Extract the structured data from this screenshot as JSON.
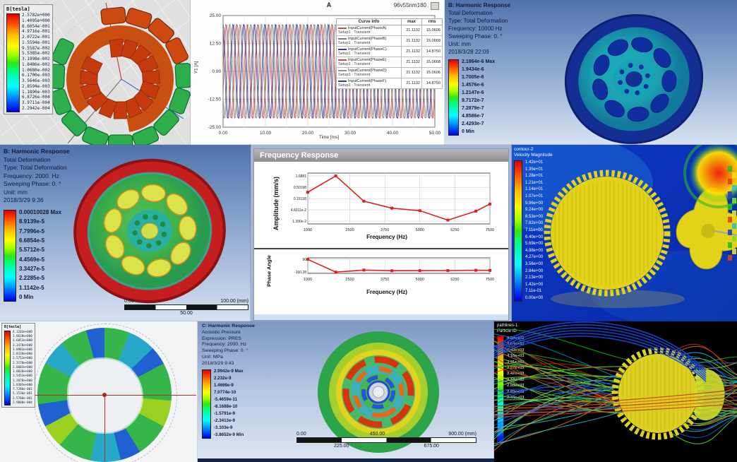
{
  "panels": {
    "flux_stator": {
      "legend_title": "B[tesla]",
      "legend_values": [
        "2.5782e+000",
        "1.4095e+000",
        "8.6054e-001",
        "4.9716e-001",
        "2.0722e-001",
        "1.5594e-001",
        "9.5587e-002",
        "5.5385e-002",
        "3.1998e-002",
        "1.8486e-002",
        "1.0680e-002",
        "6.1700e-003",
        "3.5646e-003",
        "2.8594e-003",
        "1.1890e-003",
        "6.8726e-004",
        "3.9711e-004",
        "2.2942e-004"
      ]
    },
    "phase_currents": {
      "model_label": "96v55nm180",
      "table": {
        "headers": [
          "Curve Info",
          "max",
          "rms"
        ],
        "rows": [
          {
            "name": "InputCurrent(PhaseA)",
            "setup": "Setup1 : Transient",
            "max": "21.1132",
            "rms": "15.0606",
            "swatch": "#c0504d"
          },
          {
            "name": "InputCurrent(PhaseB)",
            "setup": "Setup1 : Transient",
            "max": "21.1132",
            "rms": "15.0668",
            "swatch": "#8a7a6a"
          },
          {
            "name": "InputCurrent(PhaseC)",
            "setup": "Setup1 : Transient",
            "max": "21.1132",
            "rms": "14.8750",
            "swatch": "#3b3b8f"
          },
          {
            "name": "InputCurrent(PhaseE)",
            "setup": "Setup1 : Transient",
            "max": "21.1132",
            "rms": "15.0668",
            "swatch": "#c0504d"
          },
          {
            "name": "InputCurrent(PhaseD)",
            "setup": "Setup1 : Transient",
            "max": "21.1132",
            "rms": "15.0606",
            "swatch": "#8f8f8f"
          },
          {
            "name": "InputCurrent(PhaseF)",
            "setup": "Setup1 : Transient",
            "max": "21.1132",
            "rms": "14.8750",
            "swatch": "#3b3b8f"
          }
        ]
      }
    },
    "harmonic_10000": {
      "header_lines": [
        "B: Harmonic Response",
        "Total Deformation",
        "Type: Total Deformation",
        "Frequency: 10000 Hz",
        "Sweeping Phase: 0. °",
        "Unit: mm",
        "2018/3/28 22:09"
      ],
      "legend_values": [
        "2.1864e-6 Max",
        "1.9434e-6",
        "1.7005e-6",
        "1.4576e-6",
        "1.2147e-6",
        "9.7172e-7",
        "7.2879e-7",
        "4.8586e-7",
        "2.4293e-7",
        "0 Min"
      ]
    },
    "harmonic_2000": {
      "header_lines": [
        "B: Harmonic Response",
        "Total Deformation",
        "Type: Total Deformation",
        "Frequency: 2000. Hz",
        "Sweeping Phase: 0. °",
        "Unit: mm",
        "2018/3/29 9:36"
      ],
      "legend_values": [
        "0.00010028 Max",
        "8.9139e-5",
        "7.7996e-5",
        "6.6854e-5",
        "5.5712e-5",
        "4.4569e-5",
        "3.3427e-5",
        "2.2285e-5",
        "1.1142e-5",
        "0 Min"
      ],
      "ruler": {
        "start": "0.00",
        "mid": "50.00",
        "end": "100.00 (mm)"
      }
    },
    "freq_response": {
      "window_title": "Frequency Response"
    },
    "cfd_contour": {
      "legend_title_lines": [
        "contour-2",
        "Velocity Magnitude"
      ],
      "legend_values": [
        "1.42e+01",
        "1.35e+01",
        "1.28e+01",
        "1.21e+01",
        "1.14e+01",
        "1.07e+01",
        "9.96e+00",
        "9.24e+00",
        "8.53e+00",
        "7.82e+00",
        "7.11e+00",
        "6.40e+00",
        "5.69e+00",
        "4.98e+00",
        "4.27e+00",
        "3.56e+00",
        "2.84e+00",
        "2.13e+00",
        "1.42e+00",
        "7.11e-01",
        "0.00e+00"
      ]
    },
    "flux_rotor": {
      "legend_title": "B[tesla]",
      "legend_values": [
        "4.1203e+000",
        "3.8628e+000",
        "3.6053e+000",
        "3.3478e+000",
        "3.0903e+000",
        "2.8328e+000",
        "2.5753e+000",
        "2.3178e+000",
        "2.0603e+000",
        "1.8028e+000",
        "1.5453e+000",
        "1.2878e+000",
        "1.0303e+000",
        "7.7280e-001",
        "5.1530e-001",
        "2.5780e-001",
        "2.9000e-004"
      ]
    },
    "acoustic": {
      "header_lines": [
        "C: Harmonic Response",
        "Acoustic Pressure",
        "Expression: PRES",
        "Frequency: 2000. Hz",
        "Sweeping Phase: 0. °",
        "Unit: MPa",
        "2018/3/29 9:43"
      ],
      "legend_values": [
        "2.9942e-9 Max",
        "2.232e-9",
        "1.4699e-9",
        "7.0774e-10",
        "-5.4659e-11",
        "-8.1688e-10",
        "-1.5791e-9",
        "-2.3413e-9",
        "-3.103e-9",
        "-3.8652e-9 Min"
      ],
      "ruler": {
        "top": [
          "0.00",
          "450.00",
          "900.00 (mm)"
        ],
        "bottom": [
          "225.00",
          "675.00"
        ]
      }
    },
    "pathlines": {
      "legend_title_lines": [
        "pathlines-1",
        "Particle ID"
      ],
      "legend_values": [
        "4.89e+03",
        "4.64e+03",
        "4.40e+03",
        "4.15e+03",
        "3.91e+03",
        "3.67e+03",
        "3.42e+03",
        "3.18e+03",
        "2.93e+03",
        "2.69e+03",
        "2.44e+03"
      ]
    }
  },
  "chart_data": [
    {
      "type": "line",
      "title": "A",
      "xlabel": "Time [ms]",
      "ylabel": "Y1 [A]",
      "xlim": [
        0,
        50
      ],
      "ylim": [
        -25,
        25
      ],
      "xticks": [
        "0.00",
        "10.00",
        "20.00",
        "30.00",
        "40.00",
        "50.00"
      ],
      "yticks": [
        "25.00",
        "12.50",
        "0.00",
        "-12.50",
        "-25.00"
      ],
      "waveform": {
        "amplitude": 21.1132,
        "period_ms": 2.5,
        "phases_deg": [
          0,
          -120,
          -240,
          -30,
          -150,
          -270
        ]
      },
      "series_colors": [
        "#c0504d",
        "#8a7a6a",
        "#3b3b8f",
        "#c0504d",
        "#8f8f8f",
        "#3b3b8f"
      ],
      "grid": true,
      "legend_position": "right-overlay"
    },
    {
      "type": "line",
      "title": "Frequency Response - Amplitude",
      "ylabel": "Amplitude (mm/s)",
      "xlabel": "Frequency (Hz)",
      "yscale": "log",
      "xlim": [
        1000,
        7500
      ],
      "ylim": [
        0.0103,
        2.28
      ],
      "x": [
        1000,
        2000,
        3000,
        4000,
        5000,
        6000,
        7000,
        7500
      ],
      "y": [
        0.3,
        1.6881,
        0.115,
        0.055,
        0.042,
        0.0155,
        0.04,
        0.085
      ],
      "xticks": [
        "1000",
        "2500",
        "3750",
        "5000",
        "6250",
        "7500"
      ],
      "yticks": [
        "1.6881",
        "0.50198",
        "0.15138",
        "4.6011e-2",
        "1.390e-2"
      ],
      "color": "#e02020",
      "grid": true
    },
    {
      "type": "line",
      "title": "Frequency Response - Phase",
      "ylabel": "Phase Angle",
      "xlabel": "Frequency (Hz)",
      "xlim": [
        1000,
        7500
      ],
      "ylim": [
        -185,
        120
      ],
      "x": [
        1000,
        2000,
        3000,
        4000,
        5000,
        6000,
        7000,
        7500
      ],
      "y": [
        90,
        -160.28,
        -120,
        -133,
        -131,
        -129,
        -124,
        -126
      ],
      "xticks": [
        "1000",
        "2500",
        "3750",
        "5000",
        "6250",
        "7500"
      ],
      "yticks": [
        "90",
        "-160.28"
      ],
      "color": "#e02020",
      "grid": true
    }
  ],
  "colors": {
    "ansys_header_text": "#101f45",
    "cfd_background": "#0a34c4",
    "accent_red": "#e02020",
    "rainbow_top": "#e00000",
    "rainbow_bottom": "#0000e0"
  }
}
